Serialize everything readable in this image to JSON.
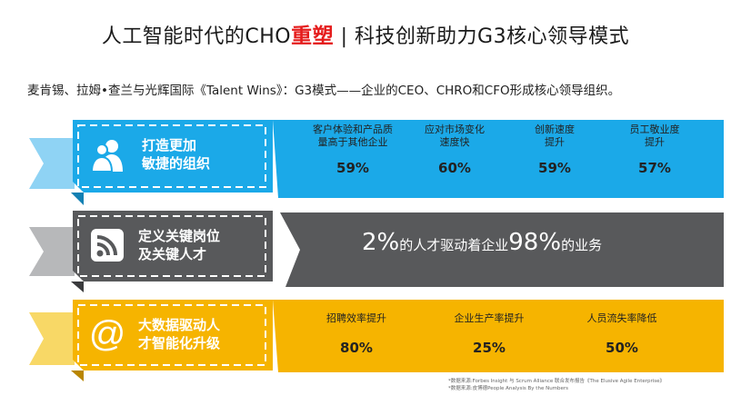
{
  "title": {
    "part1": "人工智能时代的CHO",
    "highlight": "重塑",
    "part2": " | 科技创新助力G3核心领导模式"
  },
  "subtitle": "麦肯锡、拉姆•查兰与光辉国际《Talent Wins》：G3模式——企业的CEO、CHRO和CFO形成核心领导组织。",
  "colors": {
    "row1": "#1ba9e8",
    "row2": "#58595b",
    "row3": "#f6b400",
    "highlight": "#e51c1c"
  },
  "rows": [
    {
      "icon": "people-icon",
      "label_line1": "打造更加",
      "label_line2": "敏捷的组织",
      "metrics": [
        {
          "label_line1": "客户体验和产品质",
          "label_line2": "量高于其他企业",
          "value": "59%"
        },
        {
          "label_line1": "应对市场变化",
          "label_line2": "速度快",
          "value": "60%"
        },
        {
          "label_line1": "创新速度",
          "label_line2": "提升",
          "value": "59%"
        },
        {
          "label_line1": "员工敬业度",
          "label_line2": "提升",
          "value": "57%"
        }
      ]
    },
    {
      "icon": "rss-feed-icon",
      "label_line1": "定义关键岗位",
      "label_line2": "及关键人才",
      "stat": {
        "num1": "2%",
        "text1": "的人才驱动着企业",
        "num2": "98%",
        "text2": "的业务"
      }
    },
    {
      "icon": "at-sign-icon",
      "label_line1": "大数据驱动人",
      "label_line2": "才智能化升级",
      "metrics": [
        {
          "label": "招聘效率提升",
          "value": "80%"
        },
        {
          "label": "企业生产率提升",
          "value": "25%"
        },
        {
          "label": "人员流失率降低",
          "value": "50%"
        }
      ]
    }
  ],
  "sources": {
    "line1": "*数据来源:Forbes Insight 与 Scrum Alliance 联合发布报告《The Elusive Agile Enterprise》",
    "line2": "*数据来源:皮博德People Analysis By the Numbers"
  }
}
